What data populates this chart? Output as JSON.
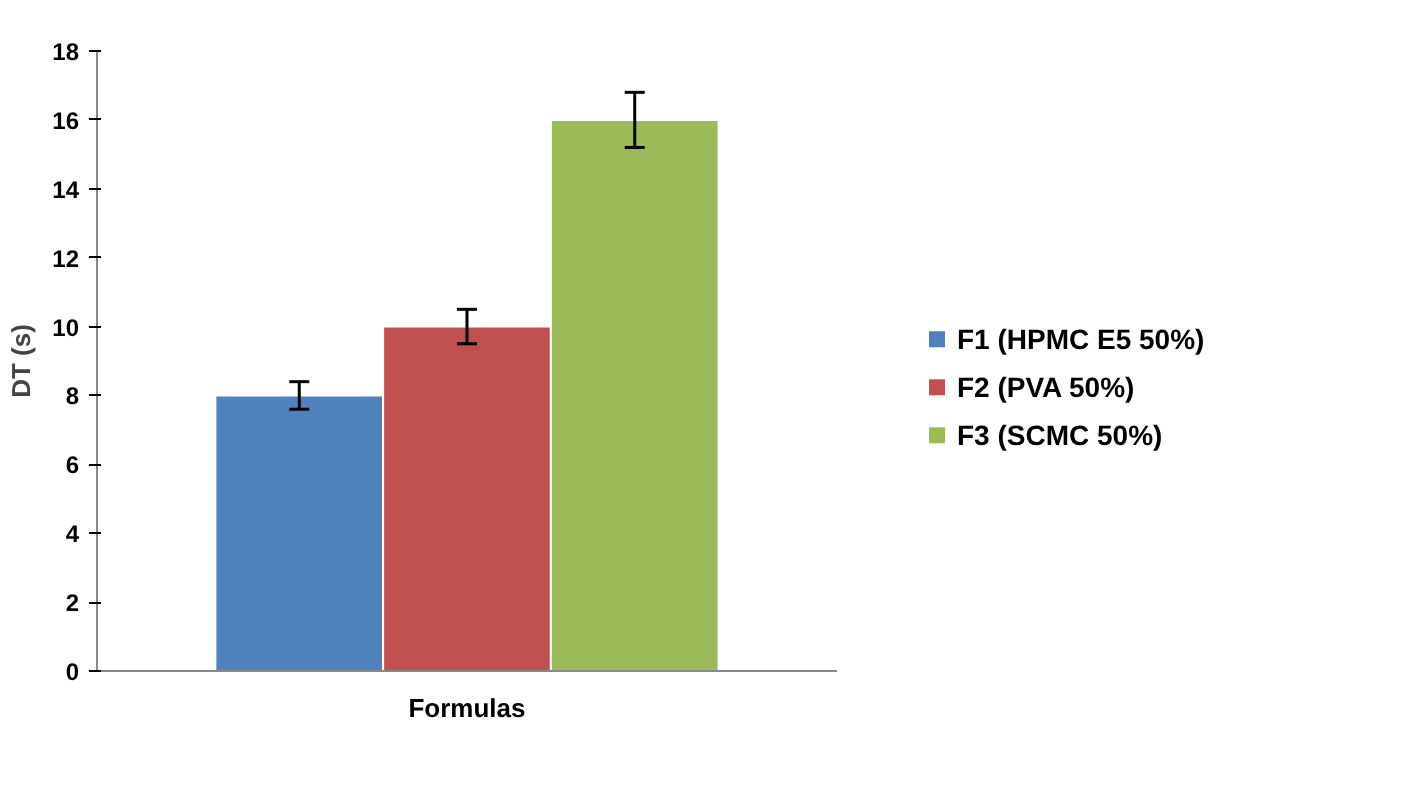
{
  "chart_data": {
    "type": "bar",
    "categories": [
      "Formulas"
    ],
    "ylabel": "DT (s)",
    "series": [
      {
        "name": "F1 (HPMC E5 50%)",
        "color": "#4f81bd",
        "values": [
          8.0
        ],
        "errors": [
          0.4
        ]
      },
      {
        "name": "F2 (PVA 50%)",
        "color": "#c0504d",
        "values": [
          10.0
        ],
        "errors": [
          0.5
        ]
      },
      {
        "name": "F3 (SCMC 50%)",
        "color": "#9bbb59",
        "values": [
          16.0
        ],
        "errors": [
          0.8
        ]
      }
    ],
    "ylim": [
      0,
      18
    ],
    "yticks": [
      0,
      2,
      4,
      6,
      8,
      10,
      12,
      14,
      16,
      18
    ],
    "grid": false,
    "legend": "right"
  }
}
